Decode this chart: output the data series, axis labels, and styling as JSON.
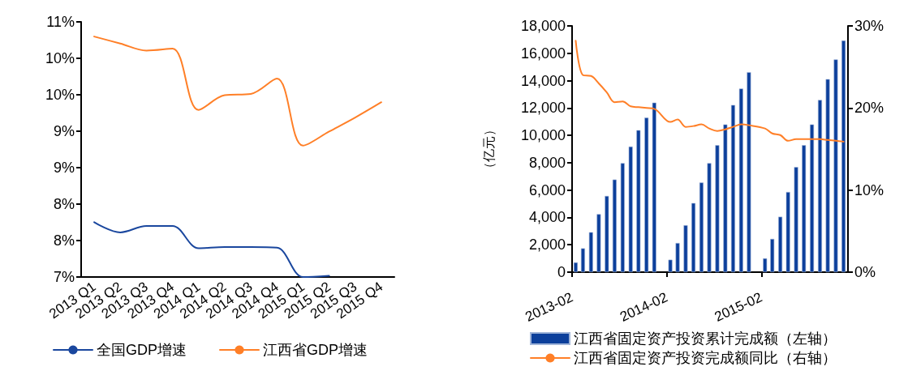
{
  "chart_data": [
    {
      "type": "line",
      "categories": [
        "2013 Q1",
        "2013 Q2",
        "2013 Q3",
        "2013 Q4",
        "2014 Q1",
        "2014 Q2",
        "2014 Q3",
        "2014 Q4",
        "2015 Q1",
        "2015 Q2",
        "2015 Q3",
        "2015 Q4"
      ],
      "series": [
        {
          "name": "全国GDP增速",
          "color": "#1a479e",
          "values": [
            7.86,
            7.7,
            7.8,
            7.8,
            7.45,
            7.47,
            7.47,
            7.46,
            7.0,
            7.02,
            null,
            null
          ]
        },
        {
          "name": "江西省GDP增速",
          "color": "#ff7f27",
          "values": [
            10.77,
            10.66,
            10.55,
            10.58,
            9.62,
            9.85,
            9.87,
            10.11,
            9.06,
            9.28,
            9.5,
            9.74
          ]
        }
      ],
      "ylim": [
        7,
        11
      ],
      "yticks": [
        {
          "value": 7,
          "label": "7%"
        },
        {
          "value": 7.5714,
          "label": "8%"
        },
        {
          "value": 8.1429,
          "label": "8%"
        },
        {
          "value": 8.7143,
          "label": "9%"
        },
        {
          "value": 9.2857,
          "label": "9%"
        },
        {
          "value": 9.8571,
          "label": "10%"
        },
        {
          "value": 10.4286,
          "label": "10%"
        },
        {
          "value": 11,
          "label": "11%"
        }
      ],
      "grid": false,
      "legend": "bottom left"
    },
    {
      "type": "bar",
      "ylabel": "（亿元）",
      "series": [
        {
          "name": "江西省固定资产投资累计完成额（左轴）",
          "color": "#0c3f9b",
          "x": [
            "2013-02-15",
            "2013-03-15",
            "2013-04-15",
            "2013-05-15",
            "2013-06-15",
            "2013-07-15",
            "2013-08-15",
            "2013-09-15",
            "2013-10-15",
            "2013-11-15",
            "2013-12-15",
            "2014-02-15",
            "2014-03-15",
            "2014-04-15",
            "2014-05-15",
            "2014-06-15",
            "2014-07-15",
            "2014-08-15",
            "2014-09-15",
            "2014-10-15",
            "2014-11-15",
            "2014-12-15",
            "2015-02-15",
            "2015-03-15",
            "2015-04-15",
            "2015-05-15",
            "2015-06-15",
            "2015-07-15",
            "2015-08-15",
            "2015-09-15",
            "2015-10-15",
            "2015-11-15",
            "2015-12-15"
          ],
          "values": [
            710,
            1740,
            2920,
            4240,
            5570,
            6770,
            7970,
            9180,
            10380,
            11290,
            12390,
            910,
            2130,
            3430,
            5050,
            6550,
            7970,
            9280,
            10800,
            12220,
            13420,
            14620,
            1010,
            2430,
            4050,
            5860,
            7680,
            9280,
            10800,
            12590,
            14110,
            15550,
            16930
          ]
        },
        {
          "name": "江西省固定资产投资完成额同比（右轴）",
          "type": "line",
          "axis": "y2",
          "color": "#ff7f27",
          "x": [
            "2013-02-15",
            "2013-03-15",
            "2013-04-15",
            "2013-05-15",
            "2013-06-15",
            "2013-07-15",
            "2013-08-15",
            "2013-09-15",
            "2013-10-15",
            "2013-11-15",
            "2013-12-15",
            "2014-02-15",
            "2014-03-15",
            "2014-04-15",
            "2014-05-15",
            "2014-06-15",
            "2014-07-15",
            "2014-08-15",
            "2014-09-15",
            "2014-10-15",
            "2014-11-15",
            "2014-12-15",
            "2015-02-15",
            "2015-03-15",
            "2015-04-15",
            "2015-05-15",
            "2015-06-15",
            "2015-07-15",
            "2015-08-15",
            "2015-09-15",
            "2015-10-15",
            "2015-11-15",
            "2015-12-15"
          ],
          "values": [
            28.2,
            24.0,
            23.9,
            23.0,
            21.9,
            20.7,
            20.8,
            20.2,
            20.1,
            20.0,
            19.9,
            18.3,
            18.6,
            17.7,
            17.8,
            18.0,
            17.5,
            17.2,
            17.4,
            17.7,
            18.0,
            17.9,
            17.5,
            16.9,
            16.7,
            16.0,
            16.2,
            16.2,
            16.2,
            16.2,
            16.1,
            16.0,
            15.9
          ]
        }
      ],
      "xlim": [
        "2013-02",
        "2016-01"
      ],
      "xticks": [
        "2013-02",
        "2014-02",
        "2015-02"
      ],
      "ylim": [
        0,
        18000
      ],
      "yticks": [
        {
          "value": 0,
          "label": "0"
        },
        {
          "value": 2000,
          "label": "2,000"
        },
        {
          "value": 4000,
          "label": "4,000"
        },
        {
          "value": 6000,
          "label": "6,000"
        },
        {
          "value": 8000,
          "label": "8,000"
        },
        {
          "value": 10000,
          "label": "10,000"
        },
        {
          "value": 12000,
          "label": "12,000"
        },
        {
          "value": 14000,
          "label": "14,000"
        },
        {
          "value": 16000,
          "label": "16,000"
        },
        {
          "value": 18000,
          "label": "18,000"
        }
      ],
      "y2lim": [
        0,
        30
      ],
      "y2ticks": [
        {
          "value": 0,
          "label": "0%"
        },
        {
          "value": 10,
          "label": "10%"
        },
        {
          "value": 20,
          "label": "20%"
        },
        {
          "value": 30,
          "label": "30%"
        }
      ],
      "grid": false,
      "legend": "bottom left"
    }
  ]
}
